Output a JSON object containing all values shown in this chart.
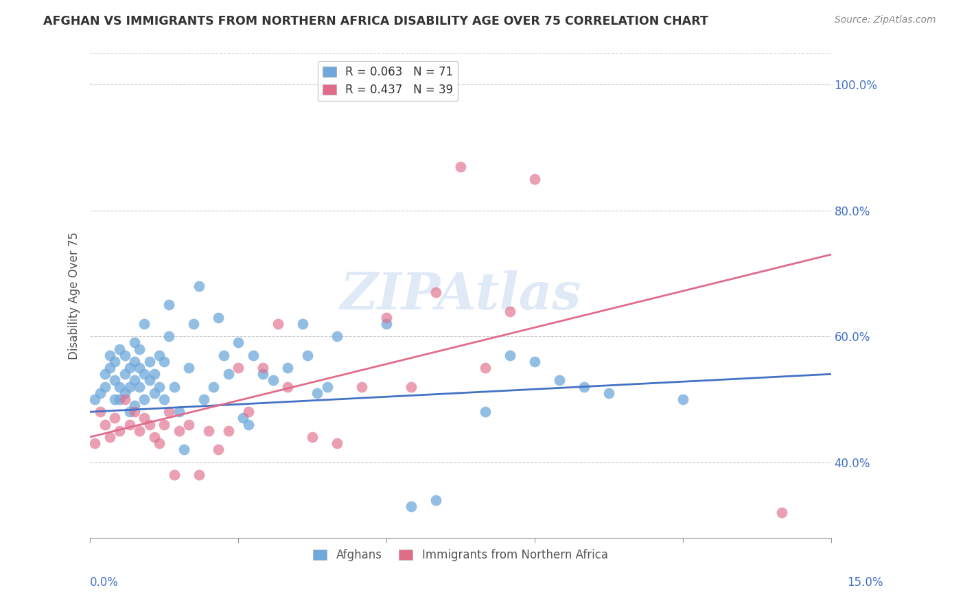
{
  "title": "AFGHAN VS IMMIGRANTS FROM NORTHERN AFRICA DISABILITY AGE OVER 75 CORRELATION CHART",
  "source": "Source: ZipAtlas.com",
  "ylabel": "Disability Age Over 75",
  "y_ticks": [
    0.4,
    0.6,
    0.8,
    1.0
  ],
  "y_tick_labels": [
    "40.0%",
    "60.0%",
    "80.0%",
    "100.0%"
  ],
  "x_min": 0.0,
  "x_max": 0.15,
  "y_min": 0.28,
  "y_max": 1.05,
  "legend_label_blue": "R = 0.063   N = 71",
  "legend_label_pink": "R = 0.437   N = 39",
  "afghans_color": "#6fa8dc",
  "north_africa_color": "#e06c8a",
  "trend_blue": "#4472c4",
  "trend_pink": "#e06c8a",
  "watermark": "ZIPAtlas",
  "afghans_x": [
    0.001,
    0.002,
    0.003,
    0.003,
    0.004,
    0.004,
    0.005,
    0.005,
    0.005,
    0.006,
    0.006,
    0.006,
    0.007,
    0.007,
    0.007,
    0.008,
    0.008,
    0.008,
    0.009,
    0.009,
    0.009,
    0.009,
    0.01,
    0.01,
    0.01,
    0.011,
    0.011,
    0.011,
    0.012,
    0.012,
    0.013,
    0.013,
    0.014,
    0.014,
    0.015,
    0.015,
    0.016,
    0.016,
    0.017,
    0.018,
    0.019,
    0.02,
    0.021,
    0.022,
    0.023,
    0.025,
    0.026,
    0.027,
    0.028,
    0.03,
    0.031,
    0.032,
    0.033,
    0.035,
    0.037,
    0.04,
    0.043,
    0.044,
    0.046,
    0.048,
    0.05,
    0.06,
    0.065,
    0.07,
    0.08,
    0.085,
    0.09,
    0.095,
    0.1,
    0.105,
    0.12
  ],
  "afghans_y": [
    0.5,
    0.51,
    0.54,
    0.52,
    0.55,
    0.57,
    0.5,
    0.53,
    0.56,
    0.5,
    0.52,
    0.58,
    0.51,
    0.54,
    0.57,
    0.48,
    0.52,
    0.55,
    0.49,
    0.53,
    0.56,
    0.59,
    0.52,
    0.55,
    0.58,
    0.5,
    0.54,
    0.62,
    0.53,
    0.56,
    0.51,
    0.54,
    0.52,
    0.57,
    0.5,
    0.56,
    0.6,
    0.65,
    0.52,
    0.48,
    0.42,
    0.55,
    0.62,
    0.68,
    0.5,
    0.52,
    0.63,
    0.57,
    0.54,
    0.59,
    0.47,
    0.46,
    0.57,
    0.54,
    0.53,
    0.55,
    0.62,
    0.57,
    0.51,
    0.52,
    0.6,
    0.62,
    0.33,
    0.34,
    0.48,
    0.57,
    0.56,
    0.53,
    0.52,
    0.51,
    0.5
  ],
  "north_africa_x": [
    0.001,
    0.002,
    0.003,
    0.004,
    0.005,
    0.006,
    0.007,
    0.008,
    0.009,
    0.01,
    0.011,
    0.012,
    0.013,
    0.014,
    0.015,
    0.016,
    0.017,
    0.018,
    0.02,
    0.022,
    0.024,
    0.026,
    0.028,
    0.03,
    0.032,
    0.035,
    0.038,
    0.04,
    0.045,
    0.05,
    0.055,
    0.06,
    0.065,
    0.07,
    0.075,
    0.08,
    0.085,
    0.09,
    0.14
  ],
  "north_africa_y": [
    0.43,
    0.48,
    0.46,
    0.44,
    0.47,
    0.45,
    0.5,
    0.46,
    0.48,
    0.45,
    0.47,
    0.46,
    0.44,
    0.43,
    0.46,
    0.48,
    0.38,
    0.45,
    0.46,
    0.38,
    0.45,
    0.42,
    0.45,
    0.55,
    0.48,
    0.55,
    0.62,
    0.52,
    0.44,
    0.43,
    0.52,
    0.63,
    0.52,
    0.67,
    0.87,
    0.55,
    0.64,
    0.85,
    0.32
  ],
  "blue_trend_y0": 0.48,
  "blue_trend_y1": 0.54,
  "pink_trend_y0": 0.44,
  "pink_trend_y1": 0.73,
  "grid_color": "#cccccc",
  "axis_color": "#999999",
  "label_color": "#4472c4",
  "title_color": "#333333",
  "source_color": "#888888",
  "ylabel_color": "#555555"
}
